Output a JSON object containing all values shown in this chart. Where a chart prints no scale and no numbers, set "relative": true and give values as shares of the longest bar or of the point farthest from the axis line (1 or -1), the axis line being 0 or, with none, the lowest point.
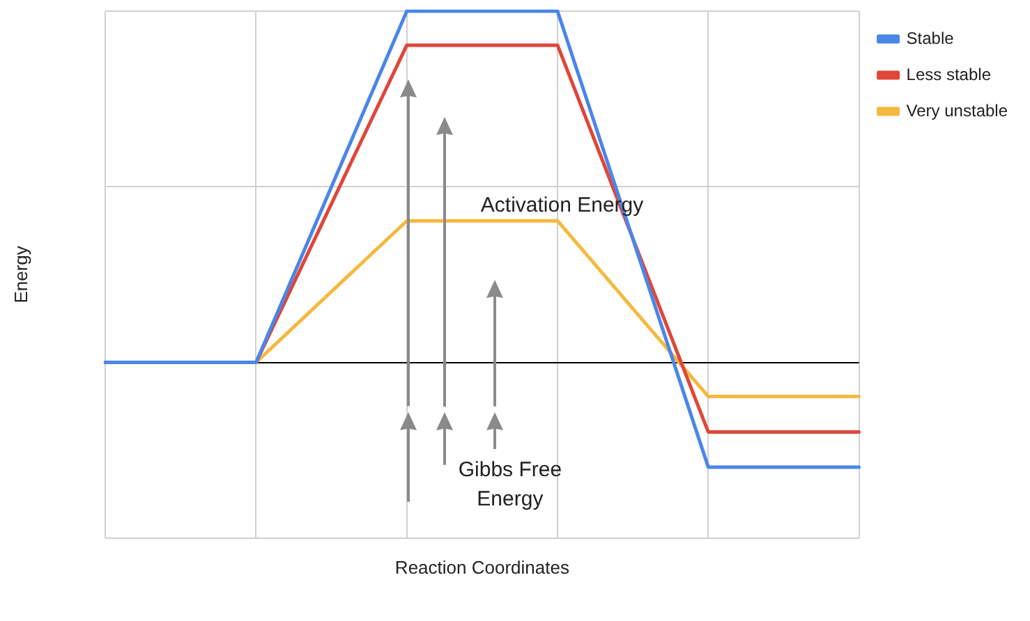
{
  "chart_data": {
    "type": "line",
    "relative": true,
    "xlabel": "Reaction Coordinates",
    "ylabel": "Energy",
    "categories": [
      null,
      null,
      null,
      null,
      null,
      null
    ],
    "series": [
      {
        "name": "Stable",
        "color": "#4a86e8",
        "values": [
          0,
          0,
          1,
          1,
          -0.298,
          -0.298
        ]
      },
      {
        "name": "Less stable",
        "color": "#e0463a",
        "values": [
          0,
          0,
          0.903,
          0.903,
          -0.198,
          -0.198
        ]
      },
      {
        "name": "Very unstable",
        "color": "#f4b940",
        "values": [
          0,
          0,
          0.403,
          0.403,
          -0.097,
          -0.097
        ]
      }
    ],
    "annotations": [
      "Activation Energy",
      "Gibbs Free\nEnergy"
    ],
    "grid": true,
    "legend": "top right",
    "marker": "none",
    "line_style": "solid"
  }
}
